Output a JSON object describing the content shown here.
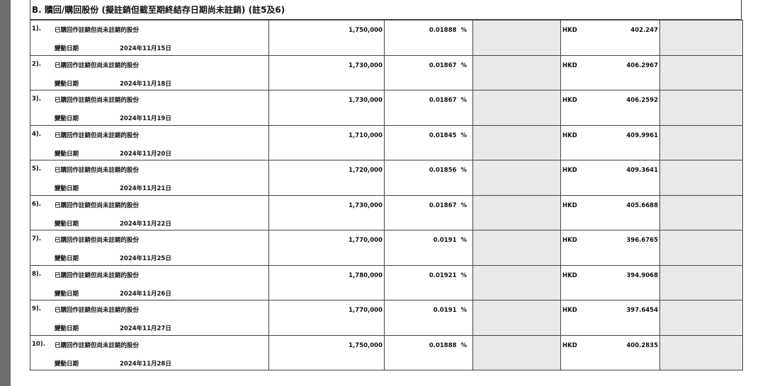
{
  "section_title": "B. 贖回/購回股份 (擬註銷但截至期終結存日期尚未註銷) (註5及6)",
  "row_description": "已購回作註銷但尚未註銷的股份",
  "change_date_label": "變動日期",
  "percent_sign": "%",
  "rows": [
    {
      "index": "1).",
      "shares": "1,750,000",
      "percent": "0.01888",
      "currency": "HKD",
      "price": "402.247",
      "date": "2024年11月15日"
    },
    {
      "index": "2).",
      "shares": "1,730,000",
      "percent": "0.01867",
      "currency": "HKD",
      "price": "406.2967",
      "date": "2024年11月18日"
    },
    {
      "index": "3).",
      "shares": "1,730,000",
      "percent": "0.01867",
      "currency": "HKD",
      "price": "406.2592",
      "date": "2024年11月19日"
    },
    {
      "index": "4).",
      "shares": "1,710,000",
      "percent": "0.01845",
      "currency": "HKD",
      "price": "409.9961",
      "date": "2024年11月20日"
    },
    {
      "index": "5).",
      "shares": "1,720,000",
      "percent": "0.01856",
      "currency": "HKD",
      "price": "409.3641",
      "date": "2024年11月21日"
    },
    {
      "index": "6).",
      "shares": "1,730,000",
      "percent": "0.01867",
      "currency": "HKD",
      "price": "405.6688",
      "date": "2024年11月22日"
    },
    {
      "index": "7).",
      "shares": "1,770,000",
      "percent": "0.0191",
      "currency": "HKD",
      "price": "396.6765",
      "date": "2024年11月25日"
    },
    {
      "index": "8).",
      "shares": "1,780,000",
      "percent": "0.01921",
      "currency": "HKD",
      "price": "394.9068",
      "date": "2024年11月26日"
    },
    {
      "index": "9).",
      "shares": "1,770,000",
      "percent": "0.0191",
      "currency": "HKD",
      "price": "397.6454",
      "date": "2024年11月27日"
    },
    {
      "index": "10).",
      "shares": "1,750,000",
      "percent": "0.01888",
      "currency": "HKD",
      "price": "400.2835",
      "date": "2024年11月28日"
    }
  ]
}
